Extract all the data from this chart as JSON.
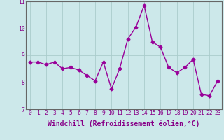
{
  "x": [
    0,
    1,
    2,
    3,
    4,
    5,
    6,
    7,
    8,
    9,
    10,
    11,
    12,
    13,
    14,
    15,
    16,
    17,
    18,
    19,
    20,
    21,
    22,
    23
  ],
  "y": [
    8.75,
    8.75,
    8.65,
    8.75,
    8.5,
    8.55,
    8.45,
    8.25,
    8.05,
    8.75,
    7.75,
    8.5,
    9.6,
    10.05,
    10.85,
    9.5,
    9.3,
    8.55,
    8.35,
    8.55,
    8.85,
    7.55,
    7.5,
    8.05
  ],
  "line_color": "#990099",
  "marker": "D",
  "marker_size": 2.5,
  "bg_color": "#cce8ea",
  "grid_color": "#aacccc",
  "xlabel": "Windchill (Refroidissement éolien,°C)",
  "xlim": [
    -0.5,
    23.5
  ],
  "ylim": [
    7,
    11
  ],
  "yticks": [
    7,
    8,
    9,
    10,
    11
  ],
  "xticks": [
    0,
    1,
    2,
    3,
    4,
    5,
    6,
    7,
    8,
    9,
    10,
    11,
    12,
    13,
    14,
    15,
    16,
    17,
    18,
    19,
    20,
    21,
    22,
    23
  ],
  "tick_color": "#880088",
  "axis_color": "#666666",
  "label_fontsize": 7.0,
  "tick_fontsize": 5.8
}
